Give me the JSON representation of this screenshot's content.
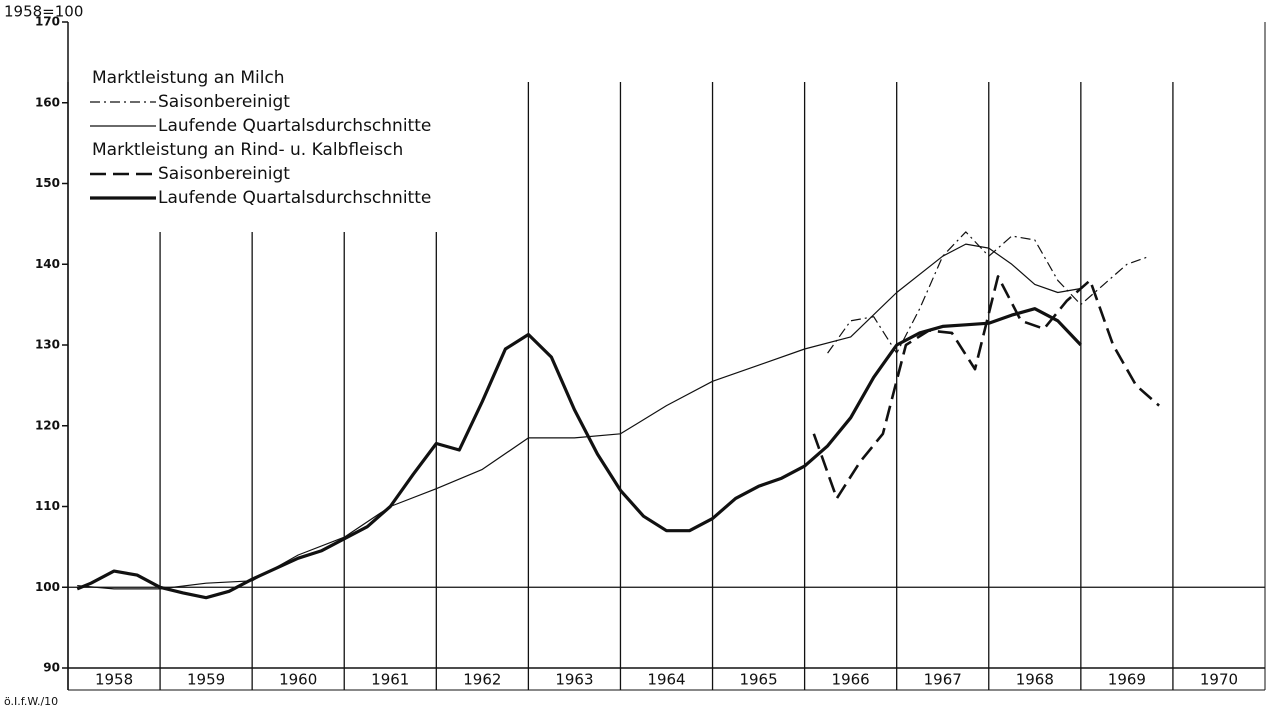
{
  "chart_data": {
    "type": "line",
    "unit_note": "1958=100",
    "source": "ö.I.f.W./10",
    "legend_groups": [
      "Marktleistung an Milch",
      "Marktleistung an Rind- u. Kalbfleisch"
    ],
    "xlim": [
      1958,
      1971
    ],
    "xticks": [
      1958,
      1959,
      1960,
      1961,
      1962,
      1963,
      1964,
      1965,
      1966,
      1967,
      1968,
      1969,
      1970
    ],
    "ylim": [
      90,
      170
    ],
    "yticks": [
      90,
      100,
      110,
      120,
      130,
      140,
      150,
      160,
      170
    ],
    "reference_line": 100,
    "grid": "x",
    "series": [
      {
        "name": "Saisonbereinigt",
        "color": "#111111",
        "style": "dashdot",
        "width": 1.2,
        "x": [
          1966.25,
          1966.5,
          1966.75,
          1967.0,
          1967.25,
          1967.5,
          1967.75,
          1968.0,
          1968.25,
          1968.5,
          1968.75,
          1969.0,
          1969.25,
          1969.5,
          1969.75
        ],
        "values": [
          129,
          133,
          133.5,
          129,
          134.5,
          141,
          144,
          141,
          143.5,
          143,
          138,
          135,
          137.5,
          140,
          141
        ]
      },
      {
        "name": "Laufende Quartalsdurchschnitte",
        "color": "#111111",
        "style": "solid",
        "width": 1.2,
        "x": [
          1958.1,
          1958.5,
          1959.0,
          1959.5,
          1960.0,
          1960.5,
          1961.0,
          1961.5,
          1962.0,
          1962.5,
          1963.0,
          1963.5,
          1964.0,
          1964.5,
          1965.0,
          1965.5,
          1966.0,
          1966.5,
          1967.0,
          1967.5,
          1967.75,
          1968.0,
          1968.25,
          1968.5,
          1968.75,
          1969.0
        ],
        "values": [
          100.2,
          99.8,
          99.8,
          100.5,
          100.8,
          104,
          106.2,
          110,
          112.2,
          114.6,
          118.5,
          118.5,
          119,
          122.5,
          125.5,
          127.5,
          129.5,
          131,
          136.5,
          141,
          142.5,
          142,
          140,
          137.5,
          136.5,
          137
        ]
      },
      {
        "name": "Saisonbereinigt",
        "color": "#111111",
        "style": "dashed",
        "width": 2.6,
        "x": [
          1966.1,
          1966.35,
          1966.6,
          1966.85,
          1967.1,
          1967.35,
          1967.6,
          1967.85,
          1968.1,
          1968.35,
          1968.6,
          1968.85,
          1969.1,
          1969.35,
          1969.6,
          1969.85
        ],
        "values": [
          119,
          111,
          115.5,
          119,
          130,
          131.8,
          131.5,
          127,
          138.5,
          133,
          132,
          135.5,
          138,
          130,
          125,
          122.5
        ]
      },
      {
        "name": "Laufende Quartalsdurchschnitte",
        "color": "#111111",
        "style": "solid",
        "width": 3.2,
        "x": [
          1958.1,
          1958.25,
          1958.5,
          1958.75,
          1959.0,
          1959.25,
          1959.5,
          1959.75,
          1960.0,
          1960.25,
          1960.5,
          1960.75,
          1961.0,
          1961.25,
          1961.5,
          1961.75,
          1962.0,
          1962.25,
          1962.5,
          1962.75,
          1963.0,
          1963.25,
          1963.5,
          1963.75,
          1964.0,
          1964.25,
          1964.5,
          1964.75,
          1965.0,
          1965.25,
          1965.5,
          1965.75,
          1966.0,
          1966.25,
          1966.5,
          1966.75,
          1967.0,
          1967.25,
          1967.5,
          1967.75,
          1968.0,
          1968.25,
          1968.5,
          1968.75,
          1969.0
        ],
        "values": [
          99.8,
          100.5,
          102,
          101.5,
          100,
          99.3,
          98.7,
          99.5,
          101,
          102.3,
          103.6,
          104.5,
          106,
          107.5,
          110,
          114,
          117.8,
          117,
          123,
          129.5,
          131.3,
          128.5,
          122,
          116.5,
          112,
          108.8,
          107,
          107,
          108.5,
          111,
          112.5,
          113.5,
          115,
          117.5,
          121,
          126,
          130,
          131.5,
          132.3,
          132.5,
          132.7,
          133.7,
          134.5,
          133,
          130
        ]
      }
    ]
  }
}
